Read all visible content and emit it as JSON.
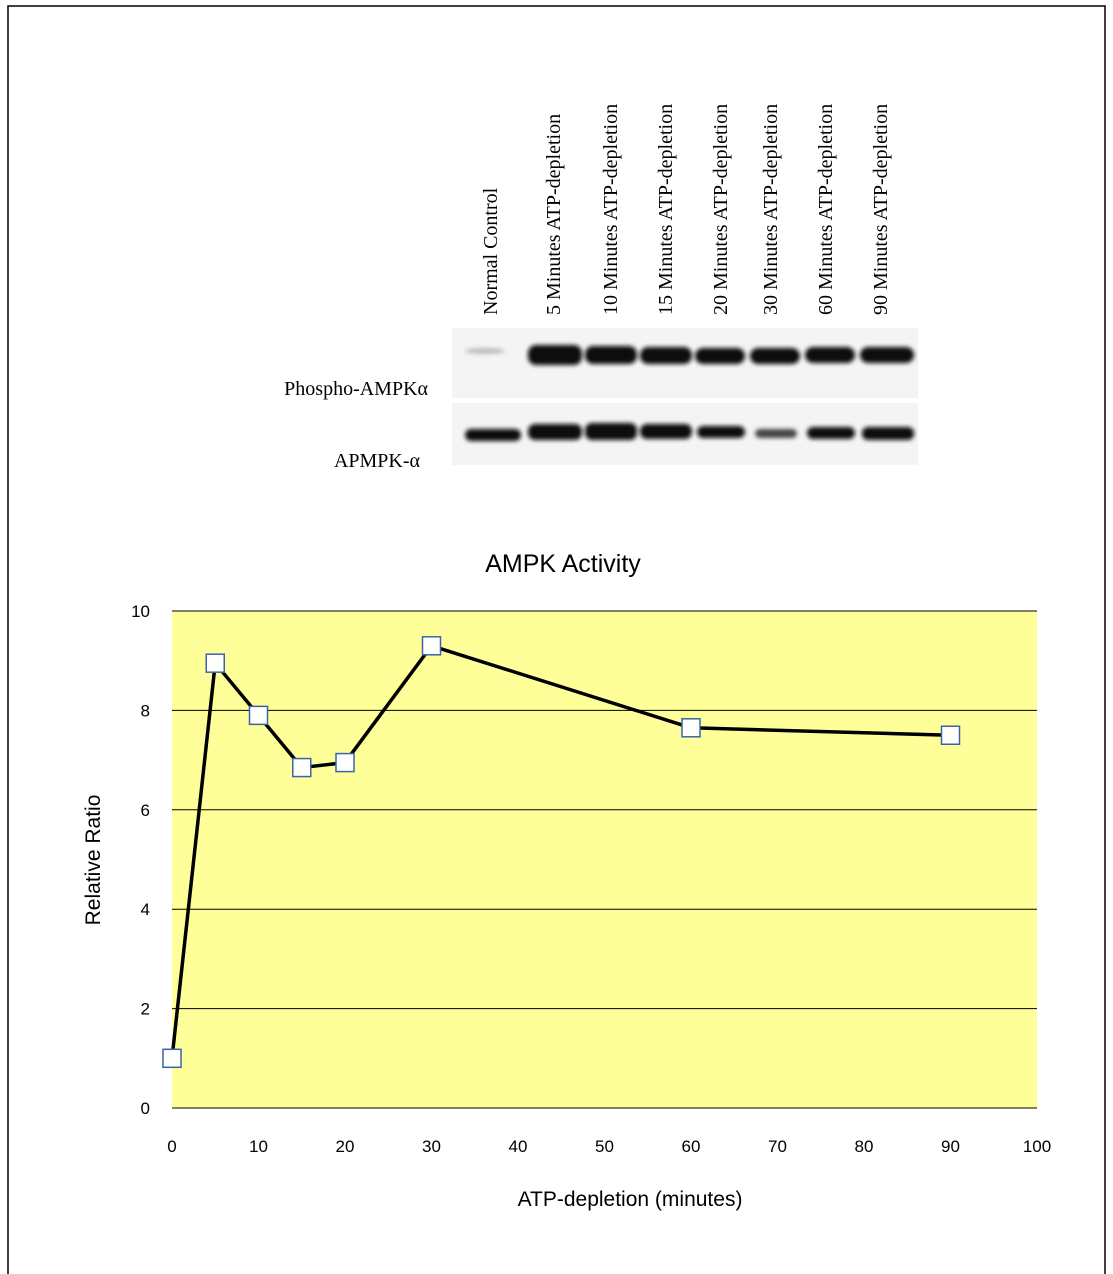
{
  "blot": {
    "lanes": [
      "Normal Control",
      "5 Minutes ATP-depletion",
      "10 Minutes ATP-depletion",
      "15 Minutes ATP-depletion",
      "20 Minutes ATP-depletion",
      "30 Minutes ATP-depletion",
      "60 Minutes ATP-depletion",
      "90 Minutes ATP-depletion"
    ],
    "rows": [
      "Phospho-AMPKα",
      "APMPK-α"
    ]
  },
  "chart_data": {
    "type": "line",
    "title": "AMPK Activity",
    "x_label": "ATP-depletion (minutes)",
    "y_label": "Relative Ratio",
    "x": [
      0,
      5,
      10,
      15,
      20,
      30,
      60,
      90
    ],
    "values": [
      1,
      8.95,
      7.9,
      6.85,
      6.95,
      9.3,
      7.65,
      7.5
    ],
    "color": "#000000",
    "xlim": [
      0,
      100
    ],
    "xticks": [
      0,
      10,
      20,
      30,
      40,
      50,
      60,
      70,
      80,
      90,
      100
    ],
    "ylim": [
      0,
      10
    ],
    "yticks": [
      0,
      2,
      4,
      6,
      8,
      10
    ],
    "grid": true
  }
}
